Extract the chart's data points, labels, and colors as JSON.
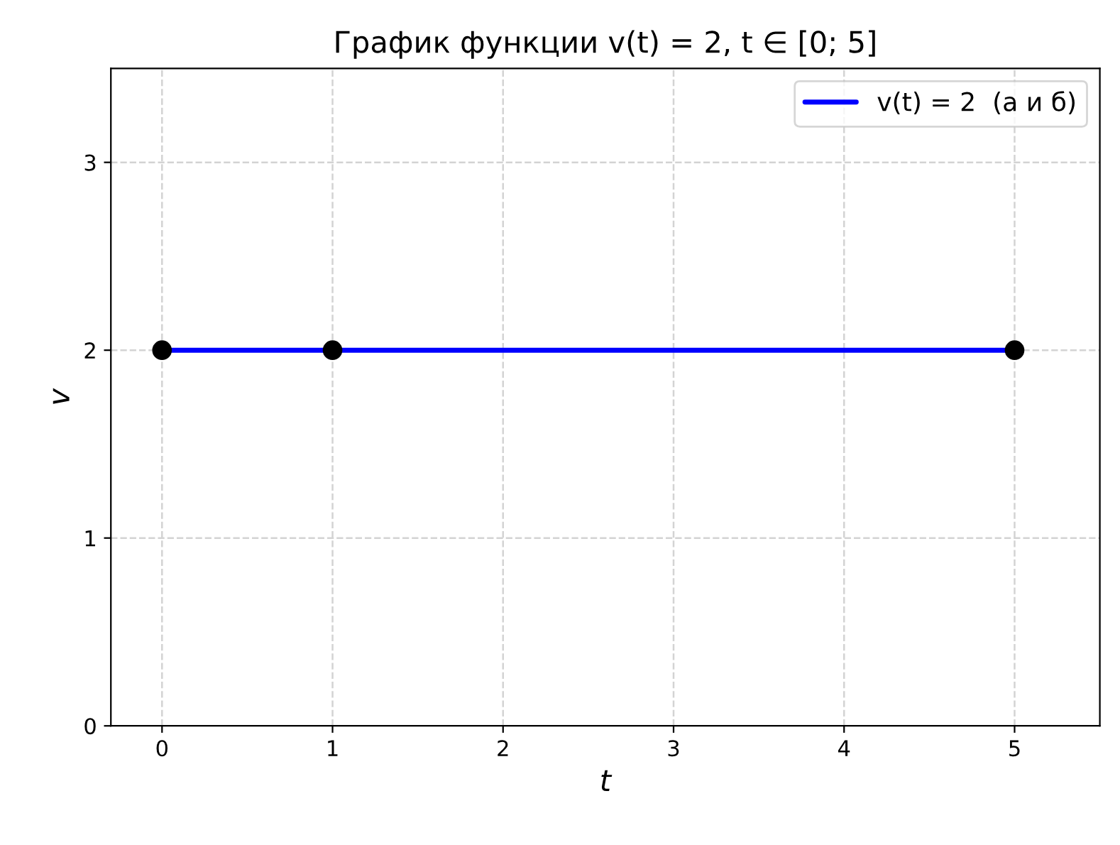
{
  "chart_data": {
    "type": "line",
    "title": "График функции v(t) = 2, t ∈ [0; 5]",
    "xlabel": "t",
    "ylabel": "v",
    "series": [
      {
        "name": "v(t) = 2  (а и б)",
        "color": "#0000ff",
        "x": [
          0,
          5
        ],
        "values": [
          2,
          2
        ],
        "marker": "none",
        "line_style": "solid"
      },
      {
        "type": "scatter",
        "color": "#000000",
        "x": [
          0,
          1,
          5
        ],
        "values": [
          2,
          2,
          2
        ],
        "marker": "circle"
      }
    ],
    "xlim": [
      -0.3,
      5.5
    ],
    "xticks": [
      0,
      1,
      2,
      3,
      4,
      5
    ],
    "ylim": [
      0,
      3.5
    ],
    "yticks": [
      0,
      1,
      2,
      3
    ],
    "grid": true,
    "legend": "top right"
  }
}
